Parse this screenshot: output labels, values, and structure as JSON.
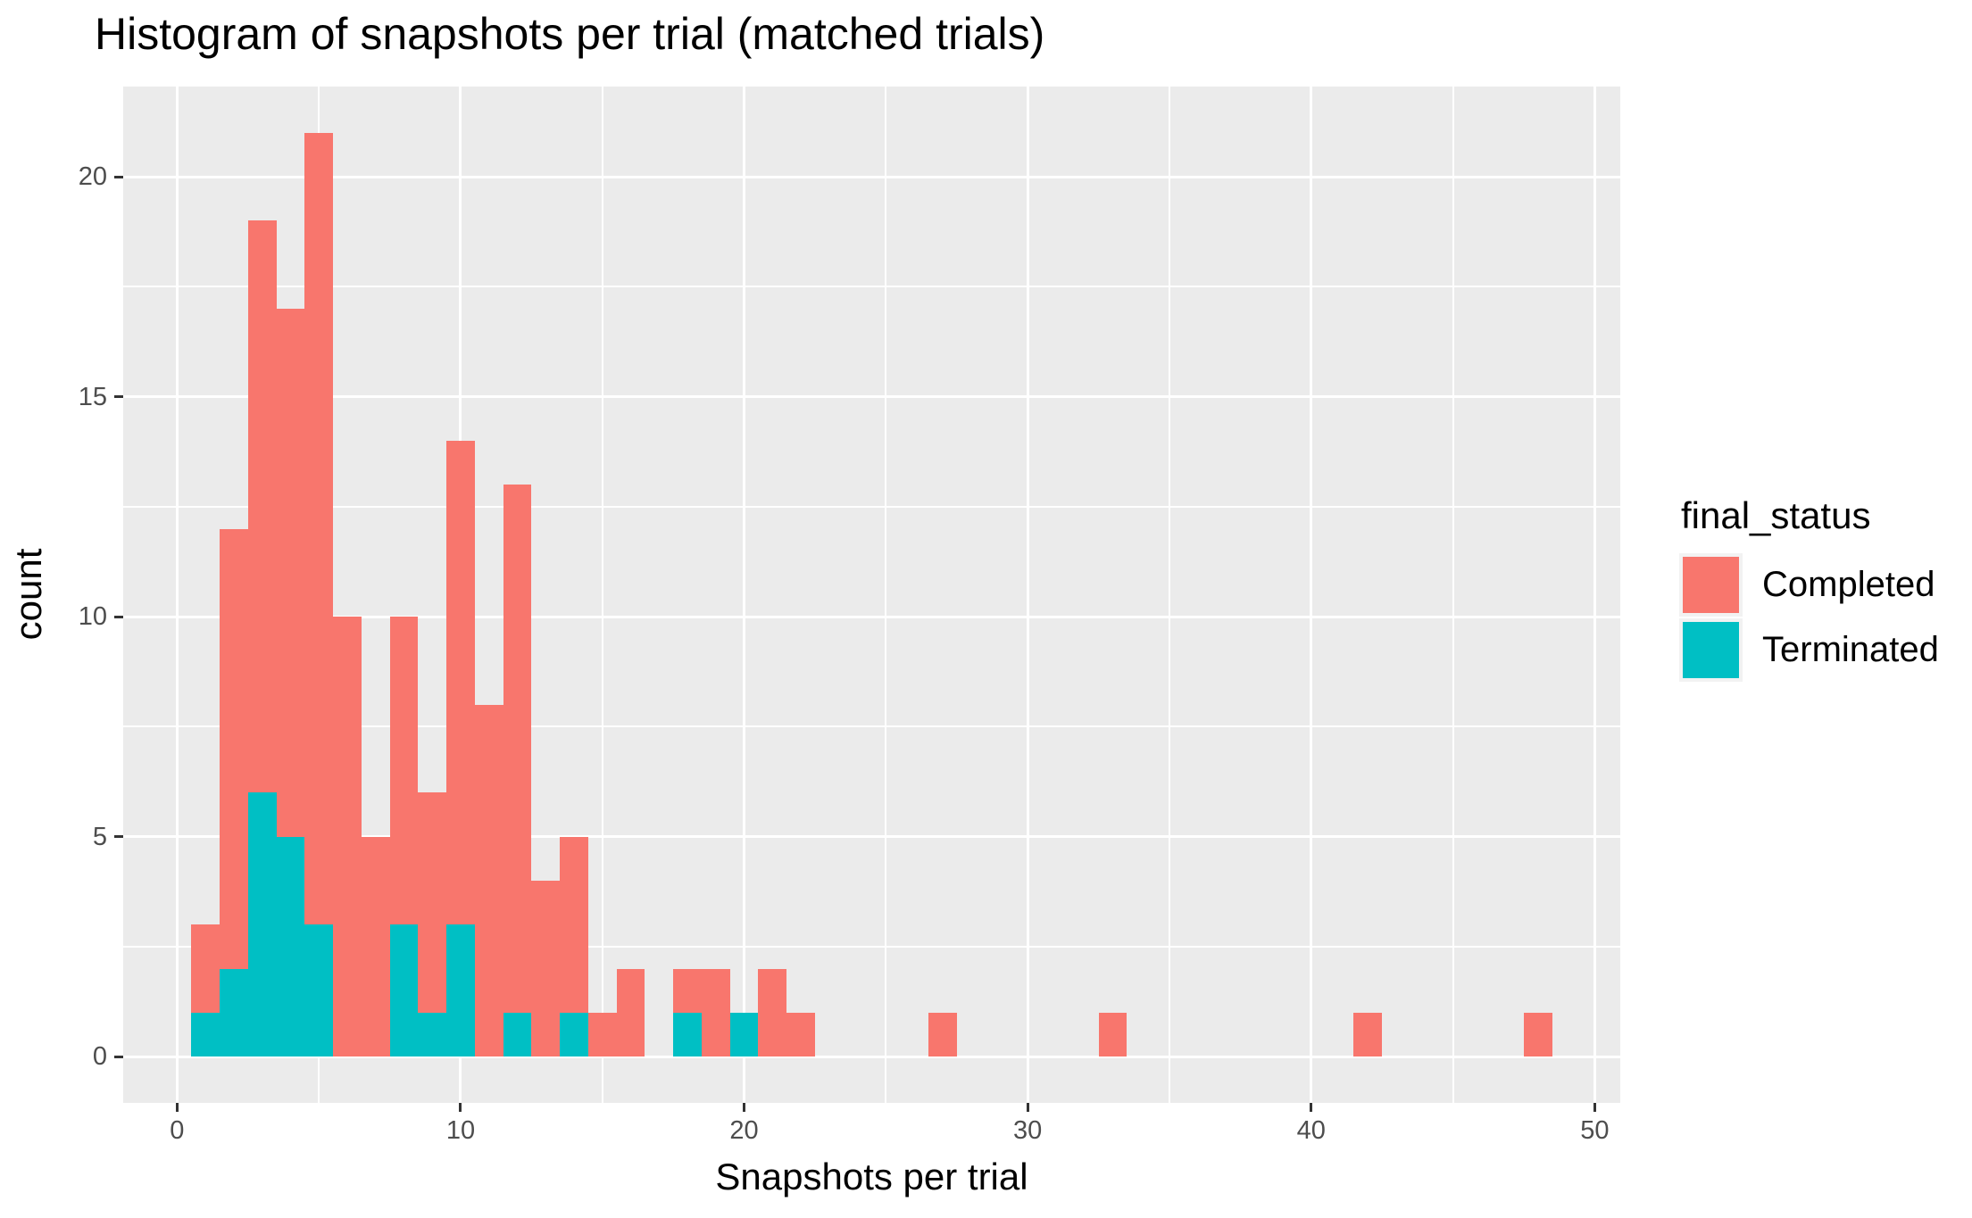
{
  "title": "Histogram of snapshots per trial (matched trials)",
  "colors": {
    "completed": "#F8766D",
    "terminated": "#00BFC4",
    "panel_bg": "#EBEBEB",
    "grid": "#FFFFFF",
    "tick_mark": "#333333",
    "tick_label": "#4D4D4D",
    "text": "#000000",
    "legend_key_bg": "#F2F2F2"
  },
  "chart_data": {
    "type": "bar",
    "subtype": "stacked-histogram",
    "title": "Histogram of snapshots per trial (matched trials)",
    "xlabel": "Snapshots per trial",
    "ylabel": "count",
    "legend_title": "final_status",
    "legend_position": "right",
    "grid": true,
    "binwidth": 1,
    "xlim": [
      -1.9,
      50.9
    ],
    "ylim": [
      -1.05,
      22.05
    ],
    "x_ticks": [
      0,
      10,
      20,
      30,
      40,
      50
    ],
    "x_minor": [
      5,
      15,
      25,
      35,
      45
    ],
    "y_ticks": [
      0,
      5,
      10,
      15,
      20
    ],
    "y_minor": [
      2.5,
      7.5,
      12.5,
      17.5
    ],
    "series": [
      {
        "name": "Completed",
        "key": "completed",
        "color": "#F8766D"
      },
      {
        "name": "Terminated",
        "key": "terminated",
        "color": "#00BFC4"
      }
    ],
    "bins": [
      {
        "x": 1,
        "terminated": 1,
        "completed": 2
      },
      {
        "x": 2,
        "terminated": 2,
        "completed": 10
      },
      {
        "x": 3,
        "terminated": 6,
        "completed": 13
      },
      {
        "x": 4,
        "terminated": 5,
        "completed": 12
      },
      {
        "x": 5,
        "terminated": 3,
        "completed": 18
      },
      {
        "x": 6,
        "terminated": 0,
        "completed": 10
      },
      {
        "x": 7,
        "terminated": 0,
        "completed": 5
      },
      {
        "x": 8,
        "terminated": 3,
        "completed": 7
      },
      {
        "x": 9,
        "terminated": 1,
        "completed": 5
      },
      {
        "x": 10,
        "terminated": 3,
        "completed": 11
      },
      {
        "x": 11,
        "terminated": 0,
        "completed": 8
      },
      {
        "x": 12,
        "terminated": 1,
        "completed": 12
      },
      {
        "x": 13,
        "terminated": 0,
        "completed": 4
      },
      {
        "x": 14,
        "terminated": 1,
        "completed": 4
      },
      {
        "x": 15,
        "terminated": 0,
        "completed": 1
      },
      {
        "x": 16,
        "terminated": 0,
        "completed": 2
      },
      {
        "x": 18,
        "terminated": 1,
        "completed": 1
      },
      {
        "x": 19,
        "terminated": 0,
        "completed": 2
      },
      {
        "x": 20,
        "terminated": 1,
        "completed": 0
      },
      {
        "x": 21,
        "terminated": 0,
        "completed": 2
      },
      {
        "x": 22,
        "terminated": 0,
        "completed": 1
      },
      {
        "x": 27,
        "terminated": 0,
        "completed": 1
      },
      {
        "x": 33,
        "terminated": 0,
        "completed": 1
      },
      {
        "x": 42,
        "terminated": 0,
        "completed": 1
      },
      {
        "x": 48,
        "terminated": 0,
        "completed": 1
      }
    ]
  }
}
